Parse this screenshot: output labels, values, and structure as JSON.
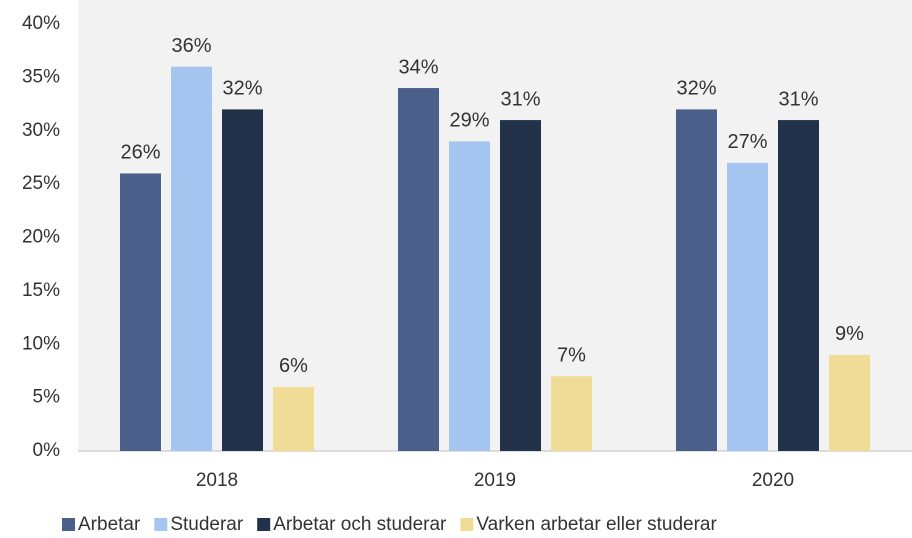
{
  "chart_data": {
    "type": "bar",
    "categories": [
      "2018",
      "2019",
      "2020"
    ],
    "series": [
      {
        "name": "Arbetar",
        "color": "#4a5f8a",
        "values": [
          26,
          34,
          32
        ],
        "value_labels": [
          "26%",
          "34%",
          "32%"
        ]
      },
      {
        "name": "Studerar",
        "color": "#a4c5ef",
        "values": [
          36,
          29,
          27
        ],
        "value_labels": [
          "36%",
          "29%",
          "27%"
        ]
      },
      {
        "name": "Arbetar och studerar",
        "color": "#22324a",
        "values": [
          32,
          31,
          31
        ],
        "value_labels": [
          "32%",
          "31%",
          "31%"
        ]
      },
      {
        "name": "Varken arbetar eller studerar",
        "color": "#f0dc96",
        "values": [
          6,
          7,
          9
        ],
        "value_labels": [
          "6%",
          "7%",
          "9%"
        ]
      }
    ],
    "ylim": [
      0,
      40
    ],
    "yticks": [
      {
        "value": 0,
        "label": "0%"
      },
      {
        "value": 5,
        "label": "5%"
      },
      {
        "value": 10,
        "label": "10%"
      },
      {
        "value": 15,
        "label": "15%"
      },
      {
        "value": 20,
        "label": "20%"
      },
      {
        "value": 25,
        "label": "25%"
      },
      {
        "value": 30,
        "label": "30%"
      },
      {
        "value": 35,
        "label": "35%"
      },
      {
        "value": 40,
        "label": "40%"
      }
    ],
    "legend": "bottom"
  }
}
